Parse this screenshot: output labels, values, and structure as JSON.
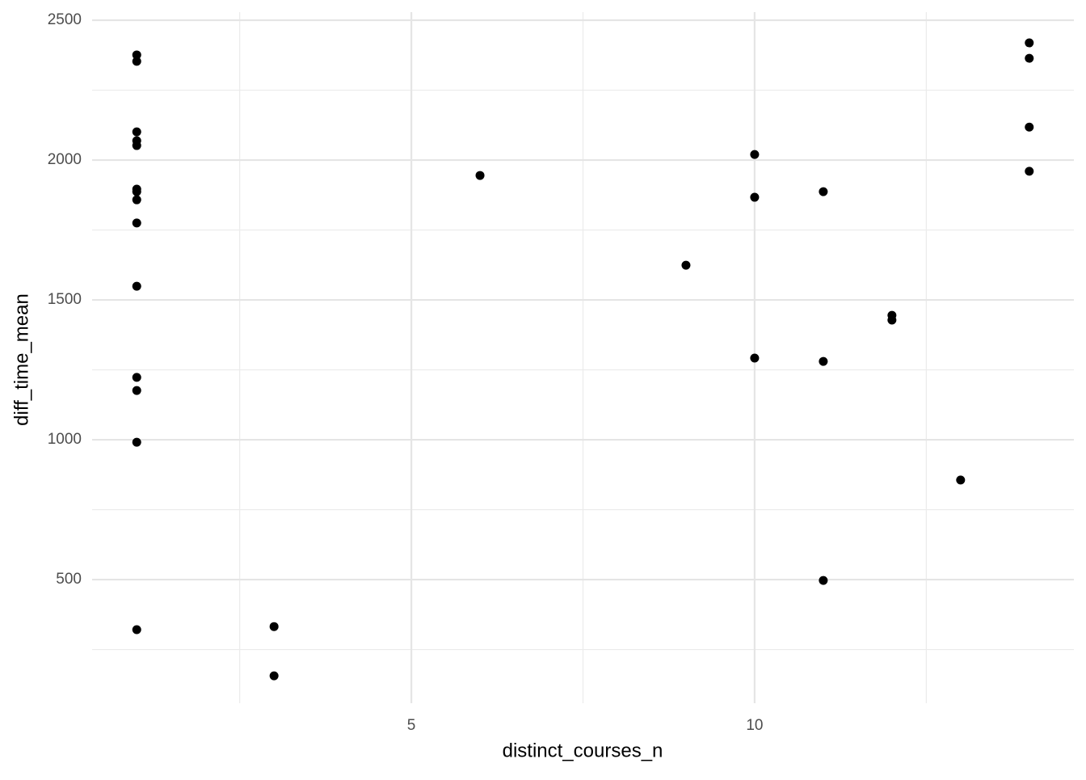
{
  "chart_data": {
    "type": "scatter",
    "x_label": "distinct_courses_n",
    "y_label": "diff_time_mean",
    "x": [
      1,
      1,
      1,
      1,
      1,
      1,
      1,
      1,
      1,
      1,
      1,
      1,
      1,
      1,
      3,
      3,
      6,
      9,
      10,
      10,
      10,
      11,
      11,
      11,
      12,
      12,
      13,
      14,
      14,
      14,
      14
    ],
    "values": [
      2376,
      2353,
      2101,
      2069,
      2052,
      1896,
      1887,
      1858,
      1775,
      1549,
      1223,
      1176,
      991,
      321,
      332,
      156,
      1945,
      1624,
      2020,
      1867,
      1292,
      1887,
      1280,
      497,
      1445,
      1428,
      856,
      2419,
      2364,
      2118,
      1960
    ],
    "color": "#000000",
    "xlim": [
      0.35,
      14.65
    ],
    "ylim": [
      58,
      2529
    ],
    "xticks": [
      5,
      10
    ],
    "yticks": [
      500,
      1000,
      1500,
      2000,
      2500
    ],
    "x_minor_grid": [
      2.5,
      7.5,
      12.5
    ],
    "y_minor_grid": [
      250,
      750,
      1250,
      1750,
      2250
    ],
    "grid": true
  }
}
